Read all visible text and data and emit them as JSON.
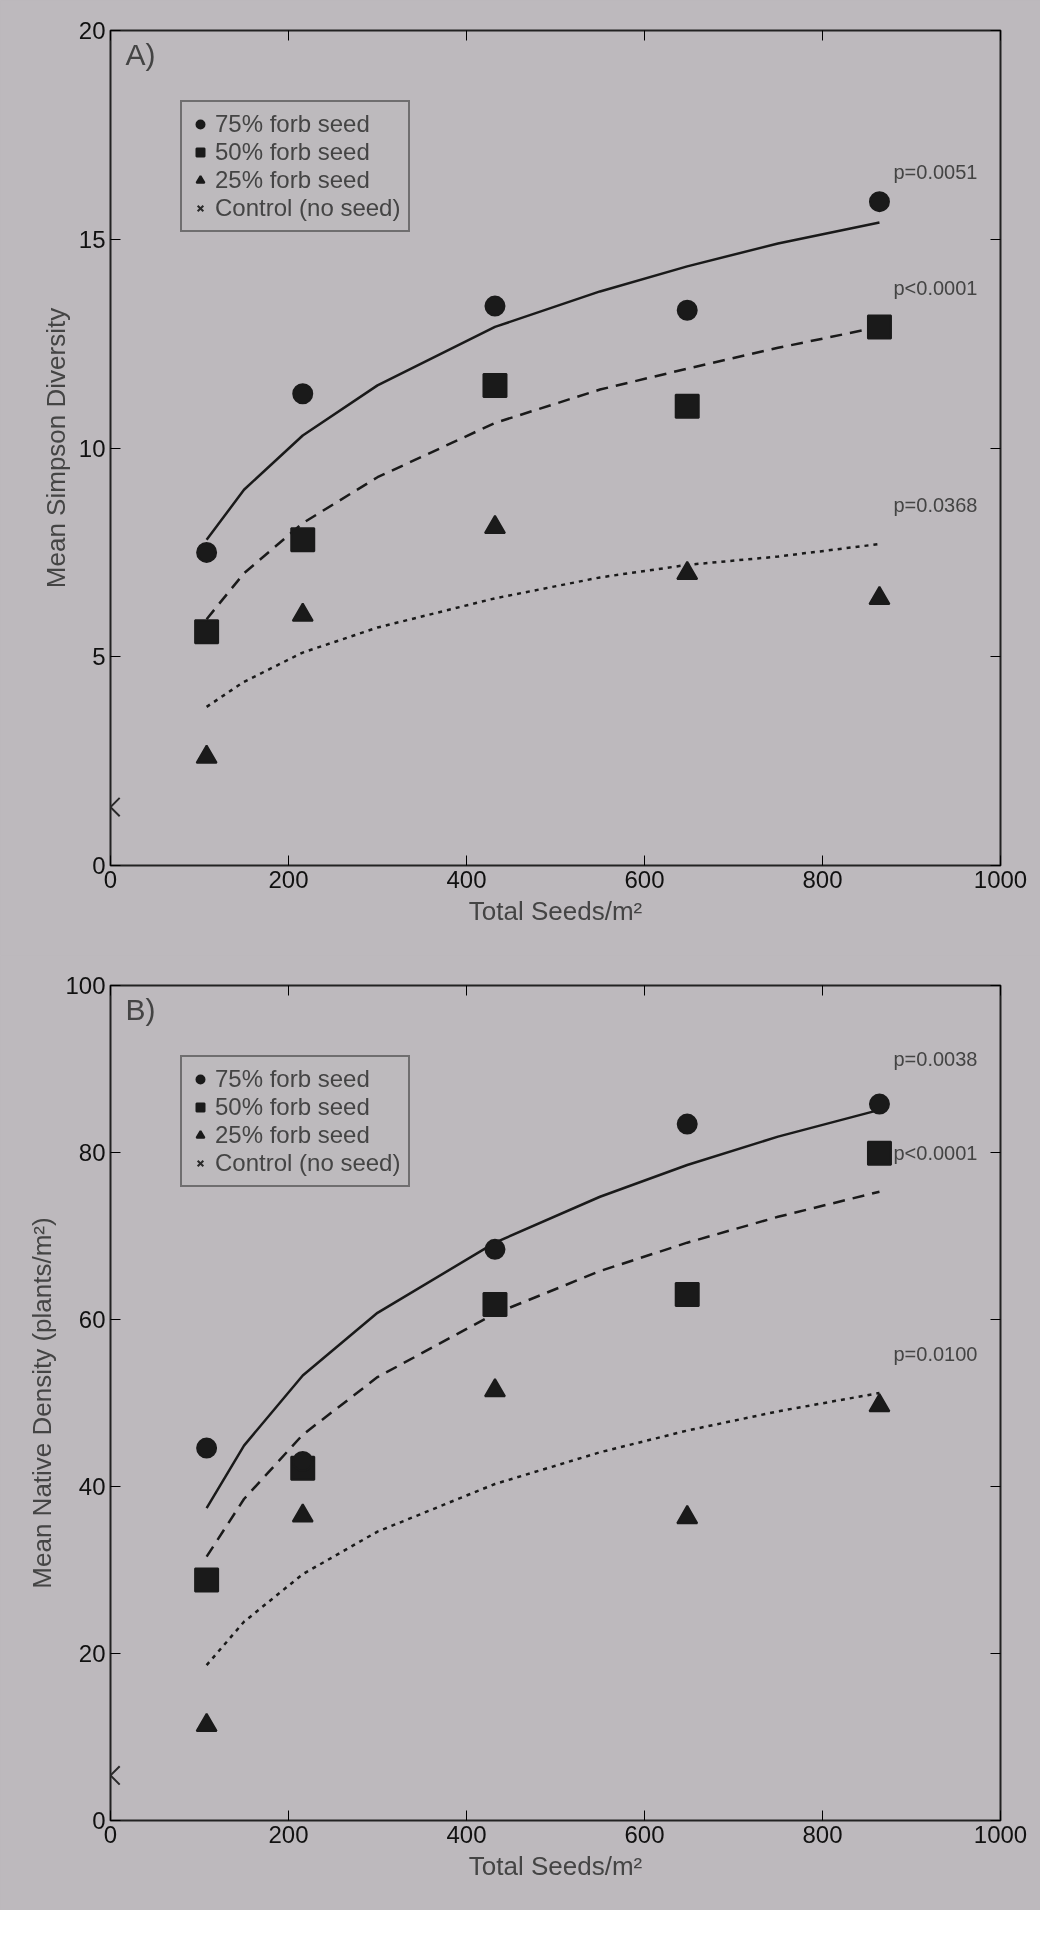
{
  "chart_data": [
    {
      "type": "scatter",
      "title": "A)",
      "xlabel": "Total Seeds/m²",
      "ylabel": "Mean Simpson Diversity",
      "xlim": [
        0,
        1000
      ],
      "xticks": [
        0,
        200,
        400,
        600,
        800,
        1000
      ],
      "ylim": [
        0,
        20
      ],
      "yticks": [
        0,
        5,
        10,
        15,
        20
      ],
      "grid": false,
      "legend": "top left",
      "series": [
        {
          "name": "75% forb seed",
          "color": "#1a1a1a",
          "marker": "circle",
          "x": [
            108,
            216,
            432,
            648,
            864
          ],
          "values": [
            7.5,
            11.3,
            13.4,
            13.3,
            15.9
          ]
        },
        {
          "name": "50% forb seed",
          "color": "#1a1a1a",
          "marker": "square",
          "x": [
            108,
            216,
            432,
            648,
            864
          ],
          "values": [
            5.6,
            7.8,
            11.5,
            11.0,
            12.9
          ]
        },
        {
          "name": "25% forb seed",
          "color": "#1a1a1a",
          "marker": "triangle",
          "x": [
            108,
            216,
            432,
            648,
            864
          ],
          "values": [
            2.6,
            6.0,
            8.1,
            7.0,
            6.4
          ]
        },
        {
          "name": "Control (no seed)",
          "color": "#2a2a2a",
          "marker": "cross",
          "x": [
            0
          ],
          "values": [
            1.4
          ]
        },
        {
          "type": "line",
          "color": "#1a1a1a",
          "marker": "none",
          "line_style": "solid",
          "x": [
            108,
            150,
            216,
            300,
            432,
            550,
            648,
            750,
            864
          ],
          "values": [
            7.8,
            9.0,
            10.3,
            11.5,
            12.9,
            13.75,
            14.35,
            14.9,
            15.4
          ]
        },
        {
          "type": "line",
          "color": "#1a1a1a",
          "marker": "none",
          "line_style": "dashed",
          "x": [
            108,
            150,
            216,
            300,
            432,
            550,
            648,
            750,
            864
          ],
          "values": [
            5.9,
            7.0,
            8.2,
            9.3,
            10.6,
            11.4,
            11.9,
            12.4,
            12.9
          ]
        },
        {
          "type": "line",
          "color": "#1a1a1a",
          "marker": "none",
          "line_style": "dotted",
          "x": [
            108,
            150,
            216,
            300,
            432,
            550,
            648,
            750,
            864
          ],
          "values": [
            3.8,
            4.4,
            5.1,
            5.7,
            6.4,
            6.9,
            7.2,
            7.4,
            7.7
          ]
        }
      ],
      "annotations": [
        "p=0.0051",
        "p<0.0001",
        "p=0.0368"
      ]
    },
    {
      "type": "scatter",
      "title": "B)",
      "xlabel": "Total Seeds/m²",
      "ylabel": "Mean Native Density (plants/m²)",
      "xlim": [
        0,
        1000
      ],
      "xticks": [
        0,
        200,
        400,
        600,
        800,
        1000
      ],
      "ylim": [
        0,
        100
      ],
      "yticks": [
        0,
        20,
        40,
        60,
        80,
        100
      ],
      "grid": false,
      "legend": "top left",
      "series": [
        {
          "name": "75% forb seed",
          "color": "#1a1a1a",
          "marker": "circle",
          "x": [
            108,
            216,
            432,
            648,
            864
          ],
          "values": [
            44.6,
            43.0,
            68.4,
            83.4,
            85.8
          ]
        },
        {
          "name": "50% forb seed",
          "color": "#1a1a1a",
          "marker": "square",
          "x": [
            108,
            216,
            432,
            648,
            864
          ],
          "values": [
            28.8,
            42.2,
            61.8,
            63.0,
            79.9
          ]
        },
        {
          "name": "25% forb seed",
          "color": "#1a1a1a",
          "marker": "triangle",
          "x": [
            108,
            216,
            432,
            648,
            864
          ],
          "values": [
            11.4,
            36.5,
            51.5,
            36.3,
            49.7
          ]
        },
        {
          "name": "Control (no seed)",
          "color": "#2a2a2a",
          "marker": "cross",
          "x": [
            0
          ],
          "values": [
            5.4
          ]
        },
        {
          "type": "line",
          "color": "#1a1a1a",
          "marker": "none",
          "line_style": "solid",
          "x": [
            108,
            150,
            216,
            300,
            432,
            550,
            648,
            750,
            864
          ],
          "values": [
            37.4,
            44.9,
            53.3,
            60.8,
            69.2,
            74.7,
            78.5,
            81.9,
            85.1
          ]
        },
        {
          "type": "line",
          "color": "#1a1a1a",
          "marker": "none",
          "line_style": "dashed",
          "x": [
            108,
            150,
            216,
            300,
            432,
            550,
            648,
            750,
            864
          ],
          "values": [
            31.6,
            38.5,
            46.2,
            53.1,
            60.7,
            65.8,
            69.2,
            72.3,
            75.3
          ]
        },
        {
          "type": "line",
          "color": "#1a1a1a",
          "marker": "none",
          "line_style": "dotted",
          "x": [
            108,
            150,
            216,
            300,
            432,
            550,
            648,
            750,
            864
          ],
          "values": [
            18.6,
            23.8,
            29.5,
            34.6,
            40.3,
            44.1,
            46.7,
            49.0,
            51.2
          ]
        }
      ],
      "annotations": [
        "p=0.0038",
        "p<0.0001",
        "p=0.0100"
      ]
    }
  ]
}
